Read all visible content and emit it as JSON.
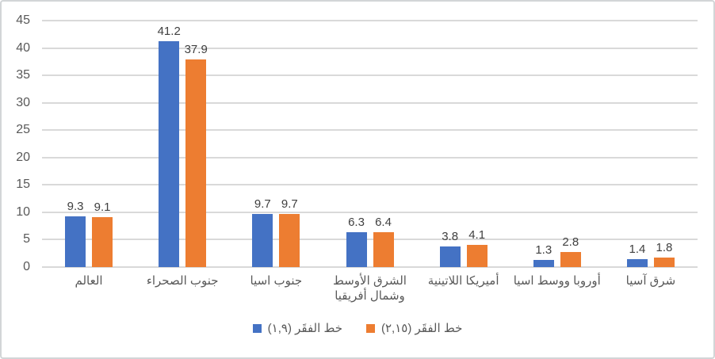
{
  "chart_data": {
    "type": "bar",
    "title": "",
    "categories": [
      "العالم",
      "جنوب الصحراء",
      "جنوب اسيا",
      "الشرق الأوسط\nوشمال أفريقيا",
      "أميريكا اللاتينية",
      "أوروبا ووسط اسيا",
      "شرق آسيا"
    ],
    "series": [
      {
        "name": "خط الفقَر (١,٩)",
        "color": "#4472C4",
        "values": [
          9.3,
          41.2,
          9.7,
          6.3,
          3.8,
          1.3,
          1.4
        ]
      },
      {
        "name": "خط الفقَر (٢,١٥)",
        "color": "#ED7D31",
        "values": [
          9.1,
          37.9,
          9.7,
          6.4,
          4.1,
          2.8,
          1.8
        ]
      }
    ],
    "data_labels": [
      [
        "9.3",
        "41.2",
        "9.7",
        "6.3",
        "3.8",
        "1.3",
        "1.4"
      ],
      [
        "9.1",
        "37.9",
        "9.7",
        "6.4",
        "4.1",
        "2.8",
        "1.8"
      ]
    ],
    "ylim": [
      0,
      45
    ],
    "ytick_step": 5,
    "yticks": [
      "0",
      "5",
      "10",
      "15",
      "20",
      "25",
      "30",
      "35",
      "40",
      "45"
    ],
    "grid": true,
    "legend_position": "bottom",
    "colors": {
      "series1": "#4472C4",
      "series2": "#ED7D31",
      "gridline": "#D9D9D9",
      "axis_text": "#595959",
      "data_label_text": "#404040",
      "background": "#FFFFFF"
    }
  }
}
